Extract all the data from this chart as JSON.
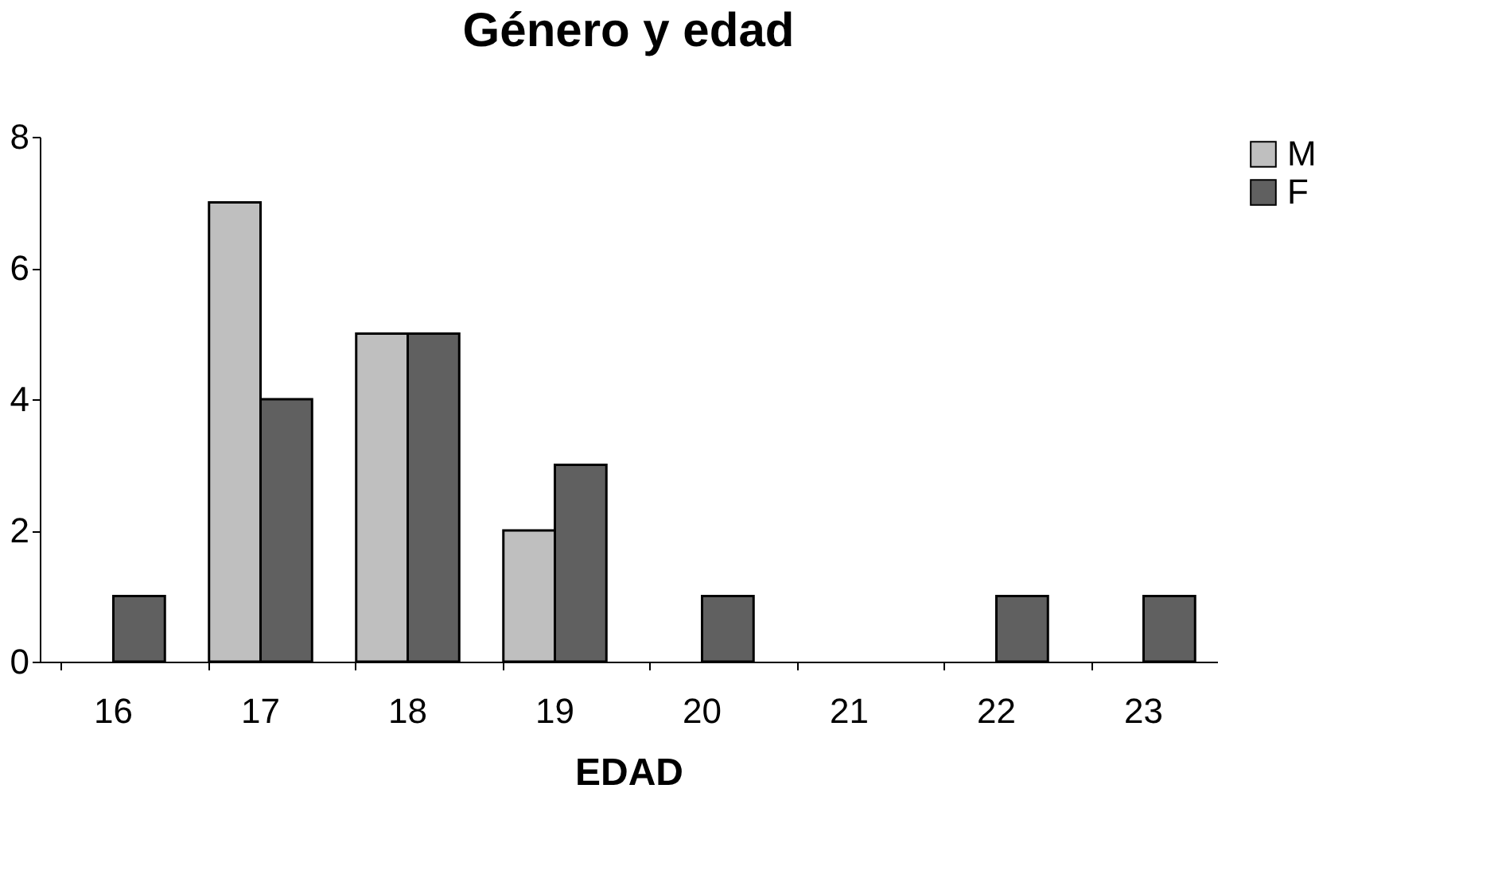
{
  "chart_data": {
    "type": "bar",
    "title": "Género y edad",
    "xlabel": "EDAD",
    "categories": [
      "16",
      "17",
      "18",
      "19",
      "20",
      "21",
      "22",
      "23"
    ],
    "series": [
      {
        "name": "M",
        "color": "#bfbfbf",
        "values": [
          null,
          7,
          5,
          2,
          null,
          null,
          null,
          null
        ]
      },
      {
        "name": "F",
        "color": "#606060",
        "values": [
          1,
          4,
          5,
          3,
          1,
          null,
          1,
          1
        ]
      }
    ],
    "ylim": [
      0,
      8
    ],
    "yticks": [
      0,
      2,
      4,
      6,
      8
    ],
    "grid": false,
    "legend": "right"
  }
}
